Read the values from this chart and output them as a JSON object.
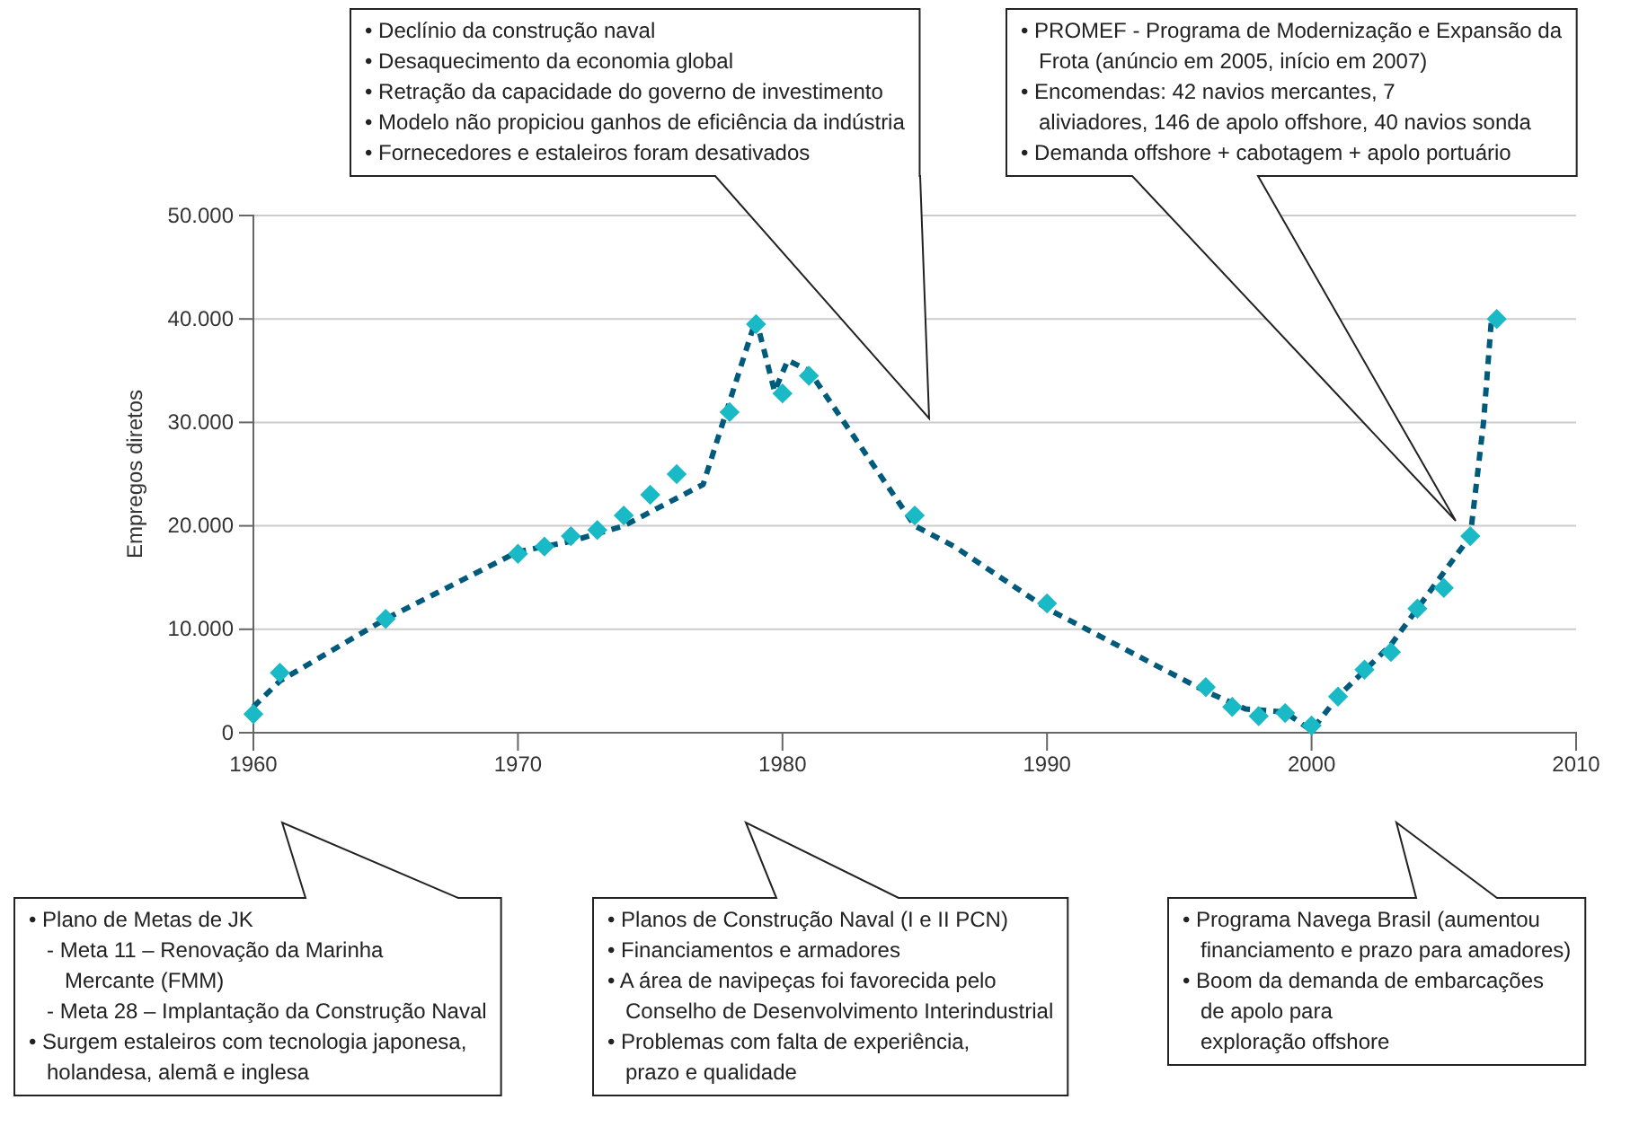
{
  "chart_data": {
    "type": "line",
    "ylabel": "Empregos diretos",
    "xlim": [
      1960,
      2010
    ],
    "xticks": [
      1960,
      1970,
      1980,
      1990,
      2000,
      2010
    ],
    "ylim": [
      0,
      50000
    ],
    "yticks": [
      {
        "value": 0,
        "label": "0"
      },
      {
        "value": 10000,
        "label": "10.000"
      },
      {
        "value": 20000,
        "label": "20.000"
      },
      {
        "value": 30000,
        "label": "30.000"
      },
      {
        "value": 40000,
        "label": "40.000"
      },
      {
        "value": 50000,
        "label": "50.000"
      }
    ],
    "grid": "y",
    "series": [
      {
        "color": "#005a7c",
        "line_style": "dashed",
        "marker": "none",
        "x": [
          1960,
          1961,
          1965,
          1970,
          1972,
          1974,
          1977,
          1979,
          1979.7,
          1980.2,
          1981,
          1985,
          1986.5,
          1990,
          1996,
          1997.5,
          1999,
          2000,
          2001,
          2003,
          2006,
          2006.5,
          2006.8
        ],
        "values": [
          2500,
          5000,
          11000,
          17500,
          18500,
          20000,
          24000,
          40000,
          33000,
          36000,
          35000,
          20000,
          18000,
          12000,
          4000,
          2300,
          2000,
          200,
          3500,
          8500,
          19000,
          30000,
          40000
        ]
      },
      {
        "type": "scatter",
        "color": "#1ab9c6",
        "marker": "diamond",
        "x": [
          1960,
          1961,
          1965,
          1970,
          1971,
          1972,
          1973,
          1974,
          1975,
          1976,
          1978,
          1979,
          1980,
          1981,
          1985,
          1990,
          1996,
          1997,
          1998,
          1999,
          2000,
          2001,
          2002,
          2003,
          2004,
          2005,
          2006,
          2007
        ],
        "values": [
          1800,
          5800,
          11000,
          17300,
          18000,
          19000,
          19600,
          21000,
          23000,
          25000,
          31000,
          39500,
          32800,
          34500,
          21000,
          12500,
          4400,
          2500,
          1600,
          1900,
          700,
          3500,
          6100,
          7800,
          12000,
          14000,
          19000,
          40000
        ]
      }
    ],
    "annotations": [
      "• Declínio da construção naval\n• Desaquecimento da economia global\n• Retração da capacidade do governo de investimento\n• Modelo não propiciou ganhos de eficiência da indústria\n• Fornecedores e estaleiros foram desativados",
      "• PROMEF - Programa de Modernização e Expansão da\n   Frota (anúncio em 2005, início em 2007)\n• Encomendas: 42 navios mercantes, 7\n   aliviadores, 146 de apolo offshore, 40 navios sonda\n• Demanda offshore + cabotagem + apolo portuário",
      "• Plano de Metas de JK\n   - Meta 11 – Renovação da Marinha\n      Mercante (FMM)\n   - Meta 28 – Implantação da Construção Naval\n• Surgem estaleiros com tecnologia japonesa,\n   holandesa, alemã e inglesa",
      "• Planos de Construção Naval (I e II PCN)\n• Financiamentos e armadores\n• A área de navipeças foi favorecida pelo\n   Conselho de Desenvolvimento Interindustrial\n• Problemas com falta de experiência,\n   prazo e qualidade",
      "• Programa Navega Brasil (aumentou\n   financiamento e prazo para amadores)\n• Boom da demanda de embarcações\n   de apolo para\n   exploração offshore"
    ]
  }
}
